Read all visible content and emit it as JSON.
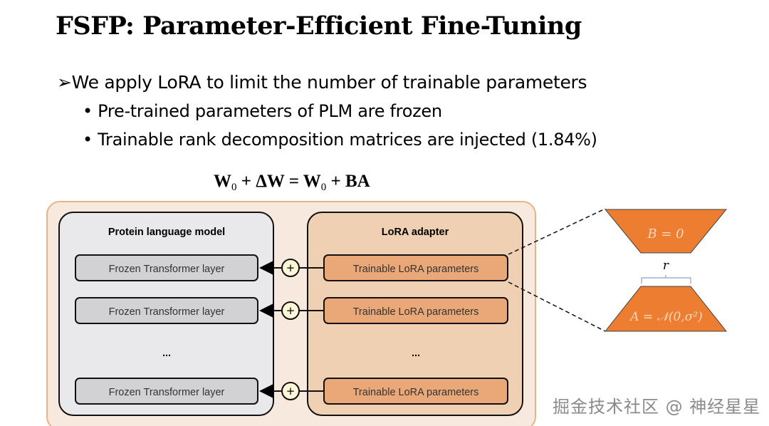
{
  "slide": {
    "title": "FSFP: Parameter-Efficient Fine-Tuning",
    "bullet_marker": "➢",
    "bullet": "We apply LoRA to limit the number of trainable parameters",
    "sub_bullets": [
      "• Pre-trained parameters of PLM are frozen",
      "• Trainable rank decomposition matrices are injected (1.84%)"
    ]
  },
  "equation": {
    "lhs_w": "W",
    "lhs_sub": "0",
    "plus1": " + ΔW = ",
    "rhs_w": "W",
    "rhs_sub": "0",
    "rhs_rest": " + BA"
  },
  "diagram": {
    "left_panel_title": "Protein language model",
    "right_panel_title": "LoRA adapter",
    "frozen_layers": [
      "Frozen Transformer layer",
      "Frozen Transformer layer",
      "Frozen Transformer layer"
    ],
    "lora_layers": [
      "Trainable LoRA parameters",
      "Trainable LoRA parameters",
      "Trainable LoRA parameters"
    ],
    "ellipsis": "...",
    "plus": "+",
    "matrix_b": "B = 0",
    "matrix_a": "A = 𝒩(0,σ²)",
    "rank_label": "r",
    "colors": {
      "orange": "#ed7d31",
      "lora_panel": "#f0d0b2",
      "lora_box": "#eaa878",
      "frozen_panel": "#e9e9eb",
      "frozen_box": "#d2d2d4",
      "frame": "#f7e9de"
    }
  },
  "watermark": "掘金技术社区 @ 神经星星"
}
